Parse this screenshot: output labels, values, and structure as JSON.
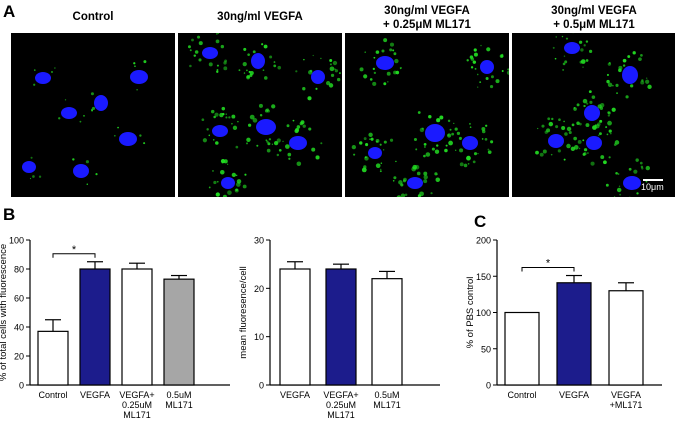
{
  "panel_a": {
    "letter": "A",
    "images": [
      {
        "label_lines": [
          "Control"
        ]
      },
      {
        "label_lines": [
          "30ng/ml VEGFA"
        ]
      },
      {
        "label_lines": [
          "30ng/ml VEGFA",
          "+ 0.25μM ML171"
        ]
      },
      {
        "label_lines": [
          "30ng/ml VEGFA",
          "+ 0.5μM ML171"
        ]
      }
    ],
    "scale_bar_label": "10μm",
    "colors": {
      "nucleus": "#1a1aff",
      "signal": "#22dd22",
      "background": "#000000"
    }
  },
  "chart_data": [
    {
      "type": "bar",
      "panel_letter": "B",
      "ylabel": "% of total cells with fluorescence",
      "ylim": [
        0,
        100
      ],
      "yticks": [
        0,
        20,
        40,
        60,
        80,
        100
      ],
      "categories": [
        [
          "Control"
        ],
        [
          "VEGFA"
        ],
        [
          "VEGFA+",
          "0.25uM",
          "ML171"
        ],
        [
          "0.5uM",
          "ML171"
        ]
      ],
      "values": [
        37,
        80,
        80,
        73
      ],
      "errors": [
        8,
        5,
        4,
        2.5
      ],
      "fills": [
        "#ffffff",
        "#1c1c8c",
        "#ffffff",
        "#a6a6a6"
      ],
      "significance": {
        "from": 0,
        "to": 1,
        "label": "*"
      }
    },
    {
      "type": "bar",
      "ylabel": "mean fluoresence/cell",
      "ylim": [
        0,
        30
      ],
      "yticks": [
        0,
        10,
        20,
        30
      ],
      "categories": [
        [
          "VEGFA"
        ],
        [
          "VEGFA+",
          "0.25uM",
          "ML171"
        ],
        [
          "0.5uM",
          "ML171"
        ]
      ],
      "values": [
        24,
        24,
        22
      ],
      "errors": [
        1.5,
        1,
        1.5
      ],
      "fills": [
        "#ffffff",
        "#1c1c8c",
        "#ffffff"
      ]
    },
    {
      "type": "bar",
      "panel_letter": "C",
      "ylabel": "% of PBS control",
      "ylim": [
        0,
        200
      ],
      "yticks": [
        0,
        50,
        100,
        150,
        200
      ],
      "categories": [
        [
          "Control"
        ],
        [
          "VEGFA"
        ],
        [
          "VEGFA",
          "+ML171"
        ]
      ],
      "values": [
        100,
        141,
        130
      ],
      "errors": [
        0,
        10,
        11
      ],
      "fills": [
        "#ffffff",
        "#1c1c8c",
        "#ffffff"
      ],
      "significance": {
        "from": 0,
        "to": 1,
        "label": "*"
      }
    }
  ]
}
